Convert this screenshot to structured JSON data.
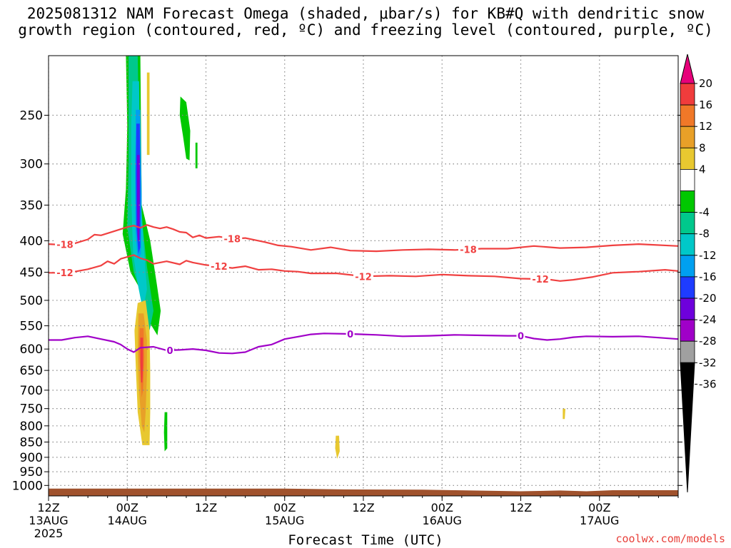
{
  "title": {
    "line1": "2025081312 NAM Forecast Omega (shaded, μbar/s) for KB#Q with dendritic snow",
    "line2": "growth region (contoured, red, ºC) and freezing level (contoured, purple, ºC)"
  },
  "xlabel": "Forecast Time (UTC)",
  "credit": "coolwx.com/models",
  "colors": {
    "credit": "#e8403a",
    "dgz_contour": "#f04040",
    "freezing_contour": "#a000c8",
    "terrain": "#a0522d",
    "grid": "#888888"
  },
  "chart_data": {
    "type": "heatmap",
    "yaxis": {
      "label": "",
      "scale": "log-pressure",
      "ticks": [
        250,
        300,
        350,
        400,
        450,
        500,
        550,
        600,
        650,
        700,
        750,
        800,
        850,
        900,
        950,
        1000
      ],
      "range": [
        200,
        1040
      ]
    },
    "xaxis": {
      "range_hours": [
        0,
        96
      ],
      "ticks": [
        {
          "hour": 0,
          "l1": "12Z",
          "l2": "13AUG",
          "l3": "2025"
        },
        {
          "hour": 12,
          "l1": "00Z",
          "l2": "14AUG",
          "l3": ""
        },
        {
          "hour": 24,
          "l1": "12Z",
          "l2": "",
          "l3": ""
        },
        {
          "hour": 36,
          "l1": "00Z",
          "l2": "15AUG",
          "l3": ""
        },
        {
          "hour": 48,
          "l1": "12Z",
          "l2": "",
          "l3": ""
        },
        {
          "hour": 60,
          "l1": "00Z",
          "l2": "16AUG",
          "l3": ""
        },
        {
          "hour": 72,
          "l1": "12Z",
          "l2": "",
          "l3": ""
        },
        {
          "hour": 84,
          "l1": "00Z",
          "l2": "17AUG",
          "l3": ""
        }
      ]
    },
    "colorbar": {
      "units": "μbar/s",
      "labels": [
        20,
        16,
        12,
        8,
        4,
        -4,
        -8,
        -12,
        -16,
        -20,
        -24,
        -28,
        -32,
        -36
      ],
      "bins": [
        {
          "lo": 20,
          "hi": null,
          "color": "#e6007a"
        },
        {
          "lo": 16,
          "hi": 20,
          "color": "#f03c3c"
        },
        {
          "lo": 12,
          "hi": 16,
          "color": "#f07828"
        },
        {
          "lo": 8,
          "hi": 12,
          "color": "#e8a028"
        },
        {
          "lo": 4,
          "hi": 8,
          "color": "#e8c830"
        },
        {
          "lo": -4,
          "hi": 4,
          "color": "#ffffff"
        },
        {
          "lo": -8,
          "hi": -4,
          "color": "#00c800"
        },
        {
          "lo": -12,
          "hi": -8,
          "color": "#00c88c"
        },
        {
          "lo": -16,
          "hi": -12,
          "color": "#00c8c8"
        },
        {
          "lo": -20,
          "hi": -16,
          "color": "#00a0f0"
        },
        {
          "lo": -24,
          "hi": -20,
          "color": "#1e3cff"
        },
        {
          "lo": -28,
          "hi": -24,
          "color": "#6e00dc"
        },
        {
          "lo": -32,
          "hi": -28,
          "color": "#a000c8"
        },
        {
          "lo": -36,
          "hi": -32,
          "color": "#a0a0a0"
        },
        {
          "lo": null,
          "hi": -36,
          "color": "#000000"
        }
      ]
    },
    "contours": [
      {
        "level": -18,
        "kind": "dendritic",
        "labels_at_hours": [
          2.5,
          28,
          64
        ],
        "points": [
          [
            0,
            405
          ],
          [
            2,
            406
          ],
          [
            4,
            404
          ],
          [
            6,
            398
          ],
          [
            7,
            391
          ],
          [
            8,
            392
          ],
          [
            10,
            386
          ],
          [
            12,
            380
          ],
          [
            13,
            378
          ],
          [
            14,
            381
          ],
          [
            15,
            377
          ],
          [
            16,
            380
          ],
          [
            17,
            382
          ],
          [
            18,
            380
          ],
          [
            19,
            383
          ],
          [
            20,
            387
          ],
          [
            21,
            388
          ],
          [
            22,
            395
          ],
          [
            23,
            392
          ],
          [
            24,
            396
          ],
          [
            26,
            394
          ],
          [
            28,
            397
          ],
          [
            30,
            396
          ],
          [
            33,
            402
          ],
          [
            35,
            407
          ],
          [
            37,
            409
          ],
          [
            40,
            414
          ],
          [
            43,
            410
          ],
          [
            46,
            415
          ],
          [
            50,
            416
          ],
          [
            54,
            414
          ],
          [
            58,
            413
          ],
          [
            62,
            414
          ],
          [
            66,
            412
          ],
          [
            70,
            412
          ],
          [
            74,
            408
          ],
          [
            78,
            411
          ],
          [
            82,
            410
          ],
          [
            86,
            407
          ],
          [
            90,
            405
          ],
          [
            96,
            408
          ]
        ]
      },
      {
        "level": -12,
        "kind": "dendritic",
        "labels_at_hours": [
          2.5,
          26,
          48,
          75
        ],
        "points": [
          [
            0,
            451
          ],
          [
            2,
            451
          ],
          [
            4,
            449
          ],
          [
            6,
            445
          ],
          [
            8,
            439
          ],
          [
            9,
            432
          ],
          [
            10,
            436
          ],
          [
            11,
            428
          ],
          [
            12,
            425
          ],
          [
            13,
            422
          ],
          [
            14,
            427
          ],
          [
            15,
            430
          ],
          [
            16,
            436
          ],
          [
            18,
            432
          ],
          [
            20,
            437
          ],
          [
            21,
            431
          ],
          [
            22,
            434
          ],
          [
            24,
            438
          ],
          [
            26,
            440
          ],
          [
            28,
            443
          ],
          [
            30,
            440
          ],
          [
            32,
            446
          ],
          [
            34,
            445
          ],
          [
            36,
            448
          ],
          [
            38,
            449
          ],
          [
            40,
            452
          ],
          [
            44,
            452
          ],
          [
            48,
            457
          ],
          [
            52,
            456
          ],
          [
            56,
            457
          ],
          [
            60,
            454
          ],
          [
            64,
            456
          ],
          [
            68,
            457
          ],
          [
            72,
            461
          ],
          [
            76,
            462
          ],
          [
            78,
            465
          ],
          [
            80,
            463
          ],
          [
            83,
            458
          ],
          [
            86,
            451
          ],
          [
            90,
            449
          ],
          [
            94,
            446
          ],
          [
            96,
            448
          ]
        ]
      },
      {
        "level": 0,
        "kind": "freezing",
        "labels_at_hours": [
          46,
          72,
          18.5
        ],
        "points": [
          [
            0,
            580
          ],
          [
            2,
            580
          ],
          [
            4,
            575
          ],
          [
            6,
            572
          ],
          [
            8,
            578
          ],
          [
            10,
            584
          ],
          [
            11,
            590
          ],
          [
            12,
            600
          ],
          [
            13,
            607
          ],
          [
            14,
            597
          ],
          [
            16,
            595
          ],
          [
            18,
            603
          ],
          [
            20,
            602
          ],
          [
            22,
            600
          ],
          [
            24,
            603
          ],
          [
            26,
            609
          ],
          [
            28,
            610
          ],
          [
            30,
            607
          ],
          [
            32,
            595
          ],
          [
            34,
            590
          ],
          [
            36,
            578
          ],
          [
            38,
            573
          ],
          [
            40,
            568
          ],
          [
            42,
            566
          ],
          [
            46,
            567
          ],
          [
            50,
            569
          ],
          [
            54,
            572
          ],
          [
            58,
            571
          ],
          [
            62,
            569
          ],
          [
            66,
            570
          ],
          [
            70,
            571
          ],
          [
            72,
            571
          ],
          [
            74,
            577
          ],
          [
            76,
            580
          ],
          [
            78,
            578
          ],
          [
            80,
            574
          ],
          [
            82,
            572
          ],
          [
            86,
            573
          ],
          [
            90,
            572
          ],
          [
            93,
            575
          ],
          [
            96,
            578
          ]
        ]
      }
    ],
    "omega_features": [
      {
        "name": "upward motion plume",
        "bin": -8,
        "points": [
          [
            11.8,
            200
          ],
          [
            14.0,
            200
          ],
          [
            14.2,
            350
          ],
          [
            15.5,
            400
          ],
          [
            16.5,
            470
          ],
          [
            17.1,
            520
          ],
          [
            16.6,
            570
          ],
          [
            15.5,
            545
          ],
          [
            14.0,
            480
          ],
          [
            12.5,
            450
          ],
          [
            11.3,
            390
          ],
          [
            11.8,
            330
          ],
          [
            12.0,
            260
          ]
        ]
      },
      {
        "name": "upward motion plume",
        "bin": -12,
        "points": [
          [
            12.2,
            200
          ],
          [
            13.6,
            200
          ],
          [
            14.0,
            350
          ],
          [
            15.0,
            440
          ],
          [
            16.0,
            520
          ],
          [
            15.4,
            560
          ],
          [
            14.5,
            500
          ],
          [
            13.0,
            450
          ],
          [
            12.0,
            380
          ],
          [
            12.2,
            300
          ]
        ]
      },
      {
        "name": "upward motion plume",
        "bin": -16,
        "points": [
          [
            12.8,
            220
          ],
          [
            13.8,
            220
          ],
          [
            14.0,
            330
          ],
          [
            14.6,
            420
          ],
          [
            15.0,
            480
          ],
          [
            14.4,
            520
          ],
          [
            13.6,
            470
          ],
          [
            12.9,
            420
          ],
          [
            12.6,
            340
          ],
          [
            12.6,
            260
          ]
        ]
      },
      {
        "name": "upward motion plume",
        "bin": -20,
        "points": [
          [
            13.3,
            245
          ],
          [
            14.0,
            245
          ],
          [
            14.2,
            340
          ],
          [
            14.1,
            420
          ],
          [
            13.6,
            430
          ],
          [
            13.2,
            380
          ],
          [
            13.2,
            300
          ]
        ]
      },
      {
        "name": "upward motion plume",
        "bin": -24,
        "points": [
          [
            13.4,
            258
          ],
          [
            13.9,
            258
          ],
          [
            14.0,
            330
          ],
          [
            14.0,
            410
          ],
          [
            13.7,
            420
          ],
          [
            13.4,
            380
          ],
          [
            13.3,
            310
          ]
        ]
      },
      {
        "name": "upward motion plume",
        "bin": -28,
        "points": [
          [
            13.5,
            290
          ],
          [
            13.9,
            290
          ],
          [
            13.9,
            350
          ],
          [
            13.8,
            400
          ],
          [
            13.6,
            400
          ],
          [
            13.5,
            350
          ]
        ]
      },
      {
        "name": "upper green streak",
        "bin": -8,
        "points": [
          [
            20.1,
            233
          ],
          [
            21.0,
            238
          ],
          [
            21.6,
            265
          ],
          [
            21.5,
            296
          ],
          [
            21.0,
            294
          ],
          [
            20.5,
            270
          ],
          [
            20.0,
            250
          ]
        ]
      },
      {
        "name": "upper green streak",
        "bin": -8,
        "points": [
          [
            22.4,
            277
          ],
          [
            22.7,
            277
          ],
          [
            22.7,
            305
          ],
          [
            22.4,
            305
          ]
        ]
      },
      {
        "name": "upper sinking streak",
        "bin": 4,
        "points": [
          [
            15.0,
            213
          ],
          [
            15.4,
            213
          ],
          [
            15.4,
            290
          ],
          [
            15.0,
            290
          ]
        ]
      },
      {
        "name": "lower sinking plume",
        "bin": 4,
        "points": [
          [
            13.6,
            505
          ],
          [
            14.8,
            500
          ],
          [
            15.4,
            560
          ],
          [
            15.5,
            650
          ],
          [
            15.5,
            760
          ],
          [
            15.4,
            860
          ],
          [
            14.3,
            860
          ],
          [
            13.6,
            760
          ],
          [
            13.3,
            640
          ],
          [
            13.1,
            560
          ]
        ]
      },
      {
        "name": "lower sinking plume",
        "bin": 8,
        "points": [
          [
            13.7,
            525
          ],
          [
            14.5,
            525
          ],
          [
            15.0,
            580
          ],
          [
            15.0,
            660
          ],
          [
            14.8,
            760
          ],
          [
            14.6,
            820
          ],
          [
            14.2,
            800
          ],
          [
            13.8,
            700
          ],
          [
            13.6,
            610
          ]
        ]
      },
      {
        "name": "lower sinking plume",
        "bin": 12,
        "points": [
          [
            13.9,
            555
          ],
          [
            14.5,
            555
          ],
          [
            14.6,
            620
          ],
          [
            14.4,
            700
          ],
          [
            14.2,
            720
          ],
          [
            14.0,
            660
          ],
          [
            13.8,
            600
          ]
        ]
      },
      {
        "name": "lower sinking plume",
        "bin": 16,
        "points": [
          [
            14.0,
            575
          ],
          [
            14.4,
            575
          ],
          [
            14.4,
            640
          ],
          [
            14.3,
            680
          ],
          [
            14.1,
            680
          ],
          [
            14.0,
            630
          ]
        ]
      },
      {
        "name": "lower upward streak",
        "bin": -8,
        "points": [
          [
            17.7,
            760
          ],
          [
            18.1,
            760
          ],
          [
            18.1,
            870
          ],
          [
            17.7,
            880
          ],
          [
            17.6,
            820
          ]
        ]
      },
      {
        "name": "small sinking cell",
        "bin": 4,
        "points": [
          [
            43.8,
            830
          ],
          [
            44.3,
            830
          ],
          [
            44.4,
            880
          ],
          [
            44.0,
            905
          ],
          [
            43.7,
            870
          ]
        ]
      },
      {
        "name": "small sinking cell",
        "bin": 4,
        "points": [
          [
            78.4,
            750
          ],
          [
            78.8,
            750
          ],
          [
            78.7,
            780
          ],
          [
            78.4,
            780
          ]
        ]
      }
    ],
    "terrain_top": [
      [
        0,
        1012
      ],
      [
        36,
        1012
      ],
      [
        45,
        1015
      ],
      [
        57,
        1016
      ],
      [
        62,
        1018
      ],
      [
        72,
        1022
      ],
      [
        78,
        1019
      ],
      [
        82,
        1022
      ],
      [
        86,
        1018
      ],
      [
        96,
        1018
      ]
    ]
  }
}
